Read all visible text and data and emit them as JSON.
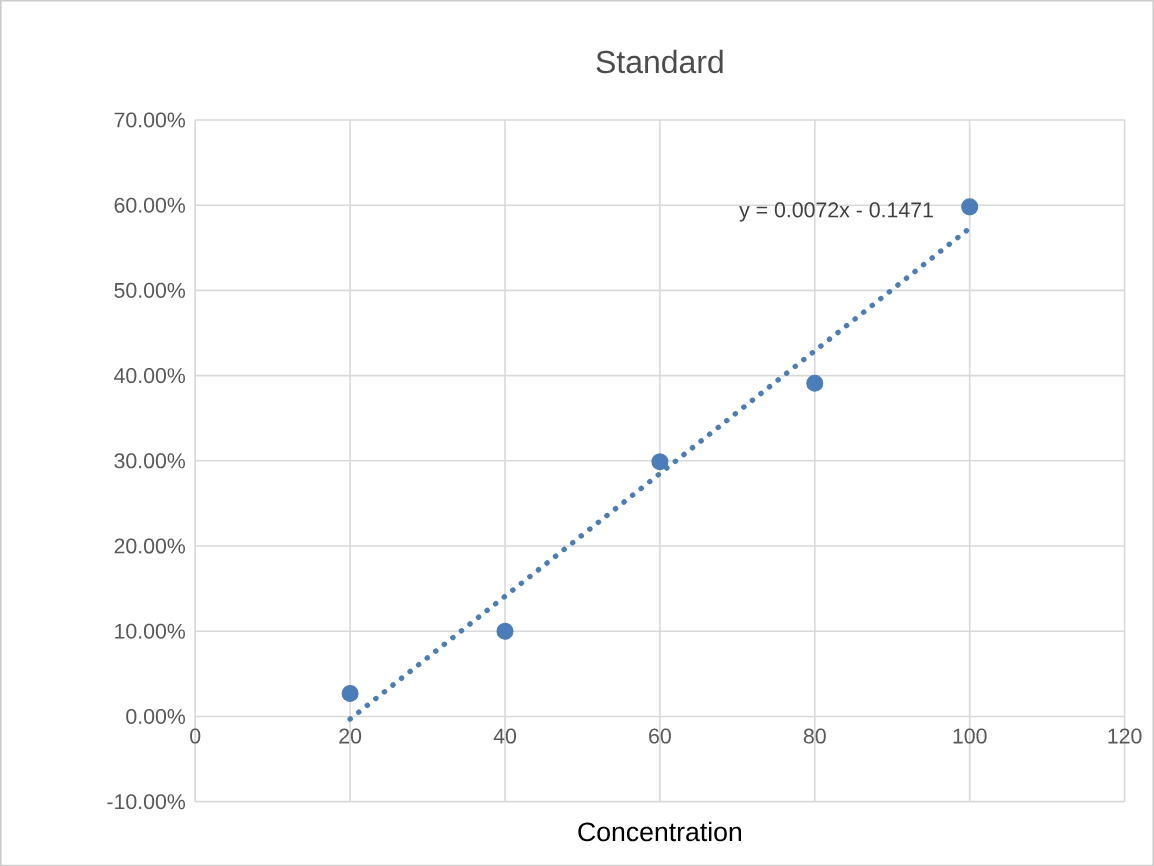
{
  "chart_data": {
    "type": "scatter",
    "title": "Standard",
    "xlabel": "Concentration",
    "series": [
      {
        "color": "#4a7ebb",
        "x": [
          20,
          40,
          60,
          80,
          100
        ],
        "values": [
          2.7,
          10.0,
          29.9,
          39.1,
          59.8
        ],
        "marker": "circle"
      },
      {
        "type": "line",
        "color": "#4a7ebb",
        "x": [
          20,
          100
        ],
        "values": [
          -0.3,
          57.3
        ],
        "line_style": "dotted",
        "marker": "none"
      }
    ],
    "annotations": [
      "y = 0.0072x - 0.1471"
    ],
    "xlim": [
      0,
      120
    ],
    "xticks": [
      0,
      20,
      40,
      60,
      80,
      100,
      120
    ],
    "ylim": [
      -10,
      70
    ],
    "yticks": [
      {
        "value": -10,
        "label": "-10.00%"
      },
      {
        "value": 0,
        "label": "0.00%"
      },
      {
        "value": 10,
        "label": "10.00%"
      },
      {
        "value": 20,
        "label": "20.00%"
      },
      {
        "value": 30,
        "label": "30.00%"
      },
      {
        "value": 40,
        "label": "40.00%"
      },
      {
        "value": 50,
        "label": "50.00%"
      },
      {
        "value": 60,
        "label": "60.00%"
      },
      {
        "value": 70,
        "label": "70.00%"
      }
    ],
    "grid": true
  }
}
